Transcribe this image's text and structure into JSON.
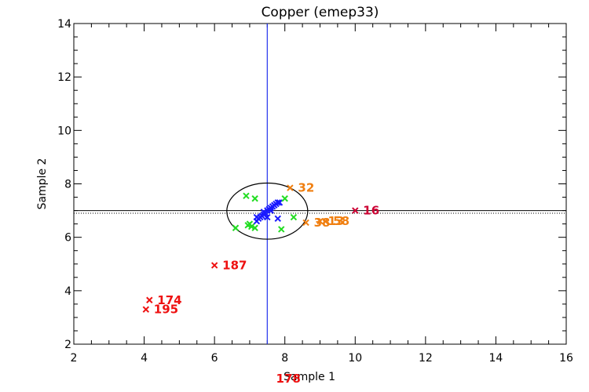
{
  "chart_data": {
    "type": "scatter",
    "title": "Copper (emep33)",
    "xlabel": "Sample 1",
    "ylabel": "Sample 2",
    "xlim": [
      2,
      16
    ],
    "ylim": [
      2,
      14
    ],
    "xticks": [
      2,
      4,
      6,
      8,
      10,
      12,
      14,
      16
    ],
    "yticks": [
      2,
      4,
      6,
      8,
      10,
      12,
      14
    ],
    "reference_lines": {
      "vertical_x": 7.5,
      "horizontal_y": 7.0,
      "horizontal_dotted_y": 6.9
    },
    "ellipse": {
      "cx": 7.5,
      "cy": 6.98,
      "rx": 1.15,
      "ry": 1.05
    },
    "colors": {
      "blue": "#1a1aff",
      "green": "#22dd22",
      "orange": "#f07f10",
      "red": "#ee1111",
      "crimson": "#cc0033",
      "vline": "#2233ee",
      "axis": "#000000"
    },
    "series": [
      {
        "color": "blue",
        "points": [
          [
            7.2,
            6.6
          ],
          [
            7.25,
            6.7
          ],
          [
            7.3,
            6.75
          ],
          [
            7.35,
            6.8
          ],
          [
            7.4,
            6.85
          ],
          [
            7.45,
            6.9
          ],
          [
            7.5,
            7.0
          ],
          [
            7.55,
            7.05
          ],
          [
            7.6,
            7.1
          ],
          [
            7.65,
            7.15
          ],
          [
            7.7,
            7.2
          ],
          [
            7.75,
            7.25
          ],
          [
            7.8,
            7.3
          ],
          [
            7.85,
            7.3
          ],
          [
            7.2,
            6.75
          ],
          [
            7.4,
            6.95
          ],
          [
            7.6,
            7.0
          ],
          [
            7.5,
            6.75
          ],
          [
            7.8,
            6.7
          ]
        ]
      },
      {
        "color": "green",
        "points": [
          [
            6.9,
            7.55
          ],
          [
            7.15,
            7.45
          ],
          [
            6.6,
            6.35
          ],
          [
            6.95,
            6.45
          ],
          [
            7.0,
            6.5
          ],
          [
            7.05,
            6.4
          ],
          [
            7.15,
            6.35
          ],
          [
            7.9,
            6.3
          ],
          [
            8.0,
            7.45
          ],
          [
            8.25,
            6.75
          ]
        ]
      },
      {
        "color": "orange",
        "labeled_points": [
          {
            "x": 8.15,
            "y": 7.85,
            "label": "32"
          },
          {
            "x": 8.6,
            "y": 6.55,
            "label": "38"
          },
          {
            "x": 9.0,
            "y": 6.6,
            "label": "13"
          },
          {
            "x": 9.15,
            "y": 6.6,
            "label": "58"
          }
        ]
      },
      {
        "color": "crimson",
        "labeled_points": [
          {
            "x": 10.0,
            "y": 7.0,
            "label": "16"
          }
        ]
      },
      {
        "color": "red",
        "labeled_points": [
          {
            "x": 6.0,
            "y": 4.95,
            "label": "187"
          },
          {
            "x": 4.15,
            "y": 3.65,
            "label": "174"
          },
          {
            "x": 4.05,
            "y": 3.3,
            "label": "195"
          }
        ]
      }
    ],
    "offscale_label": {
      "label": "178",
      "color": "red"
    }
  }
}
